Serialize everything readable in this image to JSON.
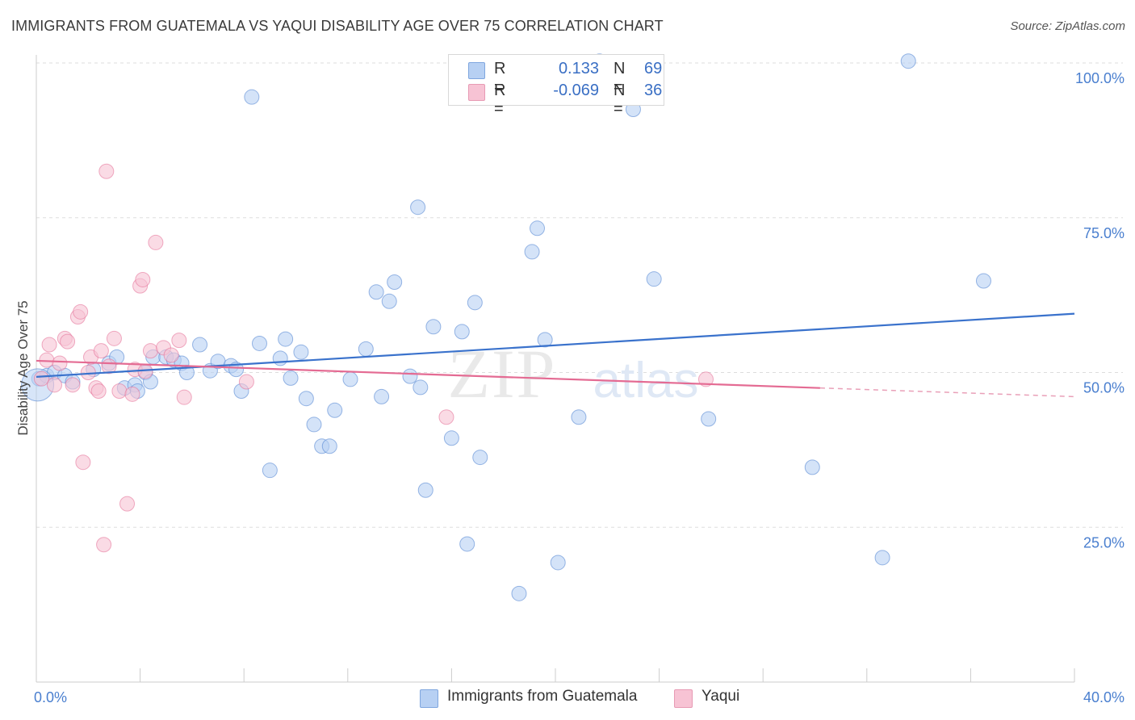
{
  "title": "IMMIGRANTS FROM GUATEMALA VS YAQUI DISABILITY AGE OVER 75 CORRELATION CHART",
  "source": "Source: ZipAtlas.com",
  "watermark": {
    "zip": "ZIP",
    "atlas": "atlas"
  },
  "legend_top": [
    {
      "swatch_color": "#b7d0f3",
      "r_label": "R =",
      "r_value": "0.133",
      "n_label": "N =",
      "n_value": "69"
    },
    {
      "swatch_color": "#f7c3d4",
      "r_label": "R =",
      "r_value": "-0.069",
      "n_label": "N =",
      "n_value": "36"
    }
  ],
  "legend_bottom": [
    {
      "label": "Immigrants from Guatemala",
      "color": "#b7d0f3"
    },
    {
      "label": "Yaqui",
      "color": "#f7c3d4"
    }
  ],
  "chart_data": {
    "type": "scatter",
    "ylabel": "Disability Age Over 75",
    "xlim": [
      0,
      40
    ],
    "ylim": [
      0,
      105
    ],
    "x_tick_labels": [
      {
        "value": 0,
        "label": "0.0%"
      },
      {
        "value": 40,
        "label": "40.0%"
      }
    ],
    "y_tick_labels": [
      {
        "value": 25,
        "label": "25.0%"
      },
      {
        "value": 50,
        "label": "50.0%"
      },
      {
        "value": 75,
        "label": "75.0%"
      },
      {
        "value": 100,
        "label": "100.0%"
      }
    ],
    "y_gridlines": [
      25,
      50,
      75,
      100
    ],
    "x_minor_ticks": [
      0,
      4,
      8,
      12,
      16,
      20,
      24,
      28,
      32,
      36,
      40
    ],
    "series": [
      {
        "name": "Immigrants from Guatemala",
        "color": "#4a7fcf",
        "fill": "#b7d0f3",
        "trend": {
          "x0": 0,
          "y0": 49.3,
          "x1": 40,
          "y1": 59.5
        },
        "points": [
          [
            0.1,
            49
          ],
          [
            0.4,
            49.5
          ],
          [
            0.7,
            50
          ],
          [
            1.1,
            49.5
          ],
          [
            1.4,
            48.5
          ],
          [
            2.2,
            50.5
          ],
          [
            2.8,
            51.5
          ],
          [
            3.1,
            52.5
          ],
          [
            3.4,
            47.5
          ],
          [
            3.8,
            48
          ],
          [
            3.9,
            47
          ],
          [
            4.2,
            50
          ],
          [
            4.4,
            48.5
          ],
          [
            4.5,
            52.5
          ],
          [
            5.0,
            52.5
          ],
          [
            5.3,
            52.0
          ],
          [
            5.6,
            51.5
          ],
          [
            5.8,
            50
          ],
          [
            6.3,
            54.5
          ],
          [
            6.7,
            50.3
          ],
          [
            7.0,
            51.8
          ],
          [
            7.5,
            51.1
          ],
          [
            7.7,
            50.5
          ],
          [
            7.9,
            47.0
          ],
          [
            8.3,
            94.5
          ],
          [
            8.6,
            54.7
          ],
          [
            9.0,
            34.2
          ],
          [
            9.4,
            52.3
          ],
          [
            9.6,
            55.4
          ],
          [
            9.8,
            49.1
          ],
          [
            10.2,
            53.3
          ],
          [
            10.4,
            45.8
          ],
          [
            10.7,
            41.6
          ],
          [
            11.0,
            38.1
          ],
          [
            11.3,
            38.1
          ],
          [
            11.5,
            43.9
          ],
          [
            12.1,
            48.9
          ],
          [
            12.7,
            53.8
          ],
          [
            13.1,
            63.0
          ],
          [
            13.3,
            46.1
          ],
          [
            13.6,
            61.5
          ],
          [
            13.8,
            64.6
          ],
          [
            14.4,
            49.4
          ],
          [
            14.7,
            76.7
          ],
          [
            14.8,
            47.6
          ],
          [
            15.0,
            31.0
          ],
          [
            15.3,
            57.4
          ],
          [
            16.0,
            39.4
          ],
          [
            16.4,
            56.6
          ],
          [
            16.6,
            22.3
          ],
          [
            16.9,
            61.3
          ],
          [
            17.1,
            36.3
          ],
          [
            18.6,
            14.3
          ],
          [
            19.1,
            69.5
          ],
          [
            19.3,
            73.3
          ],
          [
            19.6,
            55.3
          ],
          [
            20.1,
            19.3
          ],
          [
            20.9,
            42.8
          ],
          [
            21.7,
            100.3
          ],
          [
            23.0,
            92.5
          ],
          [
            23.8,
            65.1
          ],
          [
            25.9,
            42.5
          ],
          [
            29.9,
            34.7
          ],
          [
            32.6,
            20.1
          ],
          [
            33.6,
            100.3
          ],
          [
            36.5,
            64.8
          ],
          [
            0.05,
            48.0,
            "large"
          ]
        ]
      },
      {
        "name": "Yaqui",
        "color": "#e46b93",
        "fill": "#f7c3d4",
        "trend": {
          "x0": 0,
          "y0": 51.9,
          "x1": 30.2,
          "y1": 47.5,
          "dash_x1": 40,
          "dash_y1": 46.1
        },
        "points": [
          [
            0.2,
            49.0
          ],
          [
            0.4,
            52.0
          ],
          [
            0.5,
            54.5
          ],
          [
            0.7,
            48.0
          ],
          [
            0.9,
            51.5
          ],
          [
            1.1,
            55.5
          ],
          [
            1.2,
            55.0
          ],
          [
            1.4,
            48.0
          ],
          [
            1.6,
            59.0
          ],
          [
            1.7,
            59.8
          ],
          [
            1.8,
            35.5
          ],
          [
            2.0,
            50.0
          ],
          [
            2.1,
            52.5
          ],
          [
            2.3,
            47.5
          ],
          [
            2.4,
            47.0
          ],
          [
            2.5,
            53.5
          ],
          [
            2.6,
            22.2
          ],
          [
            2.7,
            82.5
          ],
          [
            2.8,
            51.0
          ],
          [
            3.0,
            55.5
          ],
          [
            3.2,
            47.0
          ],
          [
            3.5,
            28.8
          ],
          [
            3.7,
            46.5
          ],
          [
            3.8,
            50.5
          ],
          [
            4.0,
            64.0
          ],
          [
            4.1,
            65.0
          ],
          [
            4.2,
            50.2
          ],
          [
            4.4,
            53.5
          ],
          [
            4.6,
            71.0
          ],
          [
            4.9,
            54.0
          ],
          [
            5.2,
            52.8
          ],
          [
            5.5,
            55.2
          ],
          [
            5.7,
            46.0
          ],
          [
            8.1,
            48.5
          ],
          [
            15.8,
            42.8
          ],
          [
            25.8,
            48.9
          ]
        ]
      }
    ]
  }
}
